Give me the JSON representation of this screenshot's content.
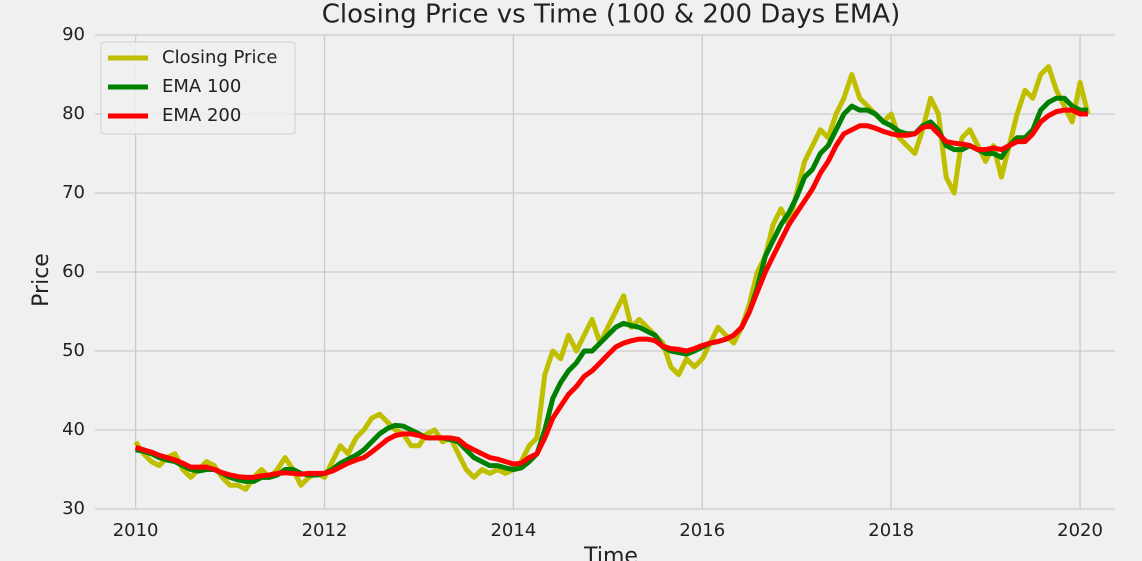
{
  "chart_data": {
    "type": "line",
    "title": "Closing Price vs Time (100 & 200 Days EMA)",
    "x_label": "Time",
    "y_label": "Price",
    "x": [
      2010,
      2010.083,
      2010.167,
      2010.25,
      2010.333,
      2010.417,
      2010.5,
      2010.583,
      2010.667,
      2010.75,
      2010.833,
      2010.917,
      2011,
      2011.083,
      2011.167,
      2011.25,
      2011.333,
      2011.417,
      2011.5,
      2011.583,
      2011.667,
      2011.75,
      2011.833,
      2011.917,
      2012,
      2012.083,
      2012.167,
      2012.25,
      2012.333,
      2012.417,
      2012.5,
      2012.583,
      2012.667,
      2012.75,
      2012.833,
      2012.917,
      2013,
      2013.083,
      2013.167,
      2013.25,
      2013.333,
      2013.417,
      2013.5,
      2013.583,
      2013.667,
      2013.75,
      2013.833,
      2013.917,
      2014,
      2014.083,
      2014.167,
      2014.25,
      2014.333,
      2014.417,
      2014.5,
      2014.583,
      2014.667,
      2014.75,
      2014.833,
      2014.917,
      2015,
      2015.083,
      2015.167,
      2015.25,
      2015.333,
      2015.417,
      2015.5,
      2015.583,
      2015.667,
      2015.75,
      2015.833,
      2015.917,
      2016,
      2016.083,
      2016.167,
      2016.25,
      2016.333,
      2016.417,
      2016.5,
      2016.583,
      2016.667,
      2016.75,
      2016.833,
      2016.917,
      2017,
      2017.083,
      2017.167,
      2017.25,
      2017.333,
      2017.417,
      2017.5,
      2017.583,
      2017.667,
      2017.75,
      2017.833,
      2017.917,
      2018,
      2018.083,
      2018.167,
      2018.25,
      2018.333,
      2018.417,
      2018.5,
      2018.583,
      2018.667,
      2018.75,
      2018.833,
      2018.917,
      2019,
      2019.083,
      2019.167,
      2019.25,
      2019.333,
      2019.417,
      2019.5,
      2019.583,
      2019.667,
      2019.75,
      2019.833,
      2019.917,
      2020,
      2020.083
    ],
    "series": [
      {
        "name": "Closing Price",
        "color": "#bfbf00",
        "values": [
          38.5,
          37,
          36,
          35.5,
          36.5,
          37,
          35,
          34,
          35,
          36,
          35.5,
          34,
          33,
          33,
          32.5,
          34,
          35,
          34,
          35,
          36.5,
          35,
          33,
          34,
          34.5,
          34,
          36,
          38,
          37,
          39,
          40,
          41.5,
          42,
          41,
          40,
          39.5,
          38,
          38,
          39.5,
          40,
          38.5,
          39,
          37,
          35,
          34,
          35,
          34.5,
          35,
          34.5,
          35,
          36,
          38,
          39,
          47,
          50,
          49,
          52,
          50,
          52,
          54,
          51,
          53,
          55,
          57,
          53,
          54,
          53,
          52,
          51,
          48,
          47,
          49,
          48,
          49,
          51,
          53,
          52,
          51,
          53,
          56,
          60,
          62,
          66,
          68,
          66,
          70,
          74,
          76,
          78,
          77,
          80,
          82,
          85,
          82,
          81,
          80,
          79,
          80,
          77,
          76,
          75,
          78,
          82,
          80,
          72,
          70,
          77,
          78,
          76,
          74,
          76,
          72,
          76,
          80,
          83,
          82,
          85,
          86,
          83,
          81,
          79,
          84,
          80
        ]
      },
      {
        "name": "EMA 100",
        "color": "#008000",
        "values": [
          37.5,
          37.3,
          37,
          36.5,
          36.2,
          36,
          35.5,
          35,
          34.8,
          35,
          35,
          34.5,
          34,
          33.7,
          33.5,
          33.5,
          34,
          34,
          34.3,
          35,
          35,
          34.5,
          34.3,
          34.3,
          34.5,
          35,
          35.8,
          36.3,
          36.8,
          37.5,
          38.5,
          39.5,
          40.2,
          40.6,
          40.5,
          40,
          39.5,
          39,
          39,
          39,
          38.8,
          38.5,
          37.5,
          36.5,
          36,
          35.5,
          35.5,
          35.2,
          35,
          35.2,
          36,
          37,
          40,
          44,
          46,
          47.5,
          48.5,
          50,
          50,
          51,
          52,
          53,
          53.5,
          53.2,
          53,
          52.5,
          52,
          50.5,
          50,
          49.8,
          49.6,
          50,
          50.5,
          51,
          51.2,
          51.5,
          52,
          53,
          55,
          58,
          62,
          64,
          66,
          67.5,
          69.5,
          72,
          73,
          75,
          76,
          78,
          80,
          81,
          80.5,
          80.5,
          80,
          79,
          78.5,
          77.8,
          77.5,
          77.5,
          78.5,
          79,
          78,
          76,
          75.5,
          75.5,
          76,
          75.5,
          75,
          75,
          74.5,
          76,
          77,
          77,
          78,
          80.5,
          81.5,
          82,
          82,
          81,
          80.5,
          80.5
        ]
      },
      {
        "name": "EMA 200",
        "color": "#ff0000",
        "values": [
          37.8,
          37.5,
          37.2,
          36.8,
          36.5,
          36.2,
          35.8,
          35.3,
          35.3,
          35.3,
          35,
          34.6,
          34.3,
          34.1,
          34,
          34,
          34.2,
          34.3,
          34.5,
          34.6,
          34.5,
          34.4,
          34.5,
          34.5,
          34.5,
          34.8,
          35.3,
          35.8,
          36.2,
          36.5,
          37.2,
          38,
          38.8,
          39.3,
          39.5,
          39.5,
          39.3,
          39,
          39,
          39,
          39,
          38.8,
          38,
          37.5,
          37,
          36.5,
          36.3,
          36,
          35.7,
          35.8,
          36.5,
          37,
          39,
          41.5,
          43,
          44.5,
          45.5,
          46.8,
          47.5,
          48.5,
          49.5,
          50.5,
          51,
          51.3,
          51.5,
          51.5,
          51.3,
          50.6,
          50.3,
          50.2,
          50,
          50.3,
          50.7,
          51,
          51.2,
          51.5,
          52,
          53,
          55,
          57.5,
          60,
          62,
          64,
          66,
          67.5,
          69,
          70.5,
          72.5,
          74,
          76,
          77.5,
          78,
          78.5,
          78.5,
          78.2,
          77.8,
          77.5,
          77.3,
          77.3,
          77.5,
          78.3,
          78.5,
          77.5,
          76.5,
          76.3,
          76.2,
          76,
          75.5,
          75.5,
          75.7,
          75.5,
          76,
          76.5,
          76.5,
          77.5,
          79,
          79.8,
          80.3,
          80.5,
          80.5,
          80,
          80
        ]
      }
    ],
    "xlim": [
      2009.57,
      2020.37
    ],
    "xticks": [
      2010,
      2012,
      2014,
      2016,
      2018,
      2020
    ],
    "ylim": [
      30,
      90
    ],
    "yticks": [
      30,
      40,
      50,
      60,
      70,
      80,
      90
    ],
    "grid": true,
    "legend": "upper-left"
  }
}
